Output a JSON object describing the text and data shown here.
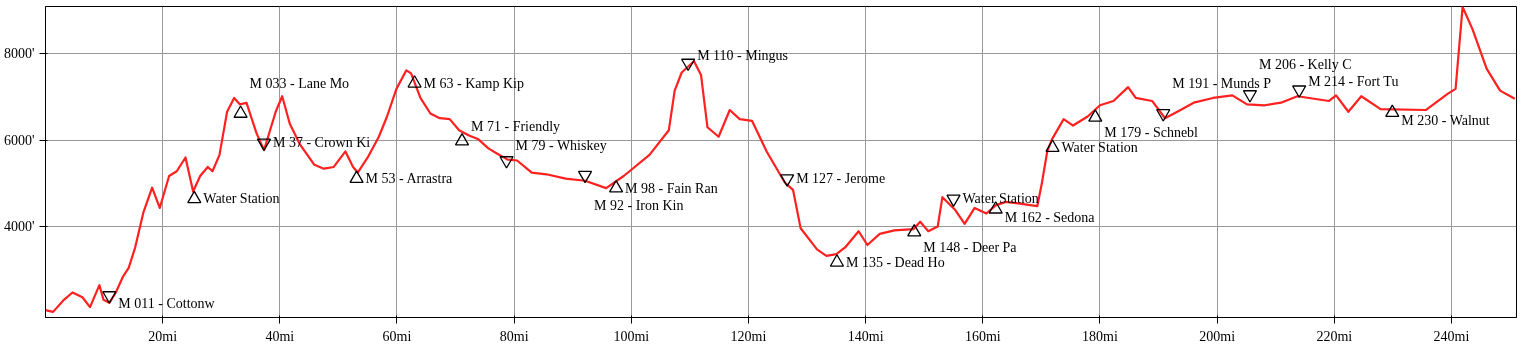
{
  "chart_data": {
    "type": "line",
    "xlim": [
      0,
      251.1
    ],
    "ylim": [
      1890,
      9100
    ],
    "xticks": [
      {
        "value": 20,
        "label": "20mi"
      },
      {
        "value": 40,
        "label": "40mi"
      },
      {
        "value": 60,
        "label": "60mi"
      },
      {
        "value": 80,
        "label": "80mi"
      },
      {
        "value": 100,
        "label": "100mi"
      },
      {
        "value": 120,
        "label": "120mi"
      },
      {
        "value": 140,
        "label": "140mi"
      },
      {
        "value": 160,
        "label": "160mi"
      },
      {
        "value": 180,
        "label": "180mi"
      },
      {
        "value": 200,
        "label": "200mi"
      },
      {
        "value": 220,
        "label": "220mi"
      },
      {
        "value": 240,
        "label": "240mi"
      }
    ],
    "yticks": [
      {
        "value": 4000,
        "label": "4000'"
      },
      {
        "value": 6000,
        "label": "6000'"
      },
      {
        "value": 8000,
        "label": "8000'"
      }
    ],
    "grid": true,
    "series": [
      {
        "color": "#ff2020",
        "x": [
          0,
          1.3,
          3.0,
          4.6,
          6.3,
          7.6,
          9.2,
          9.9,
          10.9,
          12.0,
          13.2,
          14.2,
          15.3,
          16.7,
          18.2,
          19.5,
          21.1,
          22.4,
          23.9,
          25.2,
          26.4,
          27.7,
          28.5,
          29.7,
          31.0,
          32.2,
          33.2,
          34.3,
          36.0,
          37.3,
          39.3,
          40.4,
          41.7,
          43.4,
          45.9,
          47.5,
          49.2,
          51.2,
          52.5,
          53.3,
          55.0,
          56.9,
          58.3,
          59.9,
          61.6,
          62.4,
          64.0,
          65.7,
          67.3,
          69.0,
          70.6,
          72.3,
          73.9,
          75.6,
          77.2,
          78.9,
          80.5,
          83.0,
          85.5,
          88.8,
          92.1,
          95.7,
          98.7,
          103.1,
          106.4,
          107.4,
          108.6,
          110.7,
          111.9,
          113.0,
          114.9,
          116.8,
          118.5,
          120.6,
          123.1,
          126.2,
          127.6,
          128.9,
          131.7,
          133.3,
          135.0,
          136.6,
          138.8,
          140.3,
          142.4,
          144.9,
          148.2,
          149.3,
          150.7,
          152.3,
          153.1,
          155.3,
          156.9,
          158.6,
          160.6,
          162.2,
          163.9,
          166.3,
          169.3,
          170.1,
          171.0,
          171.8,
          173.8,
          175.4,
          177.9,
          180.0,
          182.3,
          184.8,
          186.1,
          188.9,
          191.1,
          193.2,
          196.0,
          199.3,
          202.6,
          205.1,
          208.1,
          210.9,
          213.7,
          219.1,
          220.3,
          222.4,
          224.6,
          227.9,
          235.6,
          239.4,
          240.7,
          241.9,
          243.6,
          246.0,
          248.3,
          250.8
        ],
        "values": [
          2060,
          2020,
          2280,
          2470,
          2360,
          2130,
          2640,
          2300,
          2230,
          2470,
          2830,
          3040,
          3510,
          4320,
          4900,
          4430,
          5170,
          5280,
          5600,
          4810,
          5170,
          5380,
          5280,
          5660,
          6660,
          6980,
          6830,
          6870,
          6170,
          5770,
          6660,
          7020,
          6380,
          5910,
          5430,
          5340,
          5380,
          5740,
          5380,
          5250,
          5600,
          6080,
          6550,
          7190,
          7620,
          7550,
          6980,
          6620,
          6510,
          6490,
          6230,
          6110,
          6020,
          5810,
          5680,
          5550,
          5530,
          5250,
          5210,
          5110,
          5060,
          4890,
          5170,
          5660,
          6230,
          7150,
          7570,
          7830,
          7510,
          6300,
          6080,
          6700,
          6490,
          6450,
          5740,
          5020,
          4850,
          3960,
          3470,
          3320,
          3360,
          3530,
          3890,
          3570,
          3830,
          3910,
          3940,
          4110,
          3890,
          4000,
          4680,
          4380,
          4060,
          4430,
          4300,
          4490,
          4570,
          4530,
          4470,
          5020,
          5740,
          6020,
          6490,
          6340,
          6550,
          6810,
          6910,
          7230,
          6980,
          6910,
          6510,
          6660,
          6870,
          6980,
          7040,
          6830,
          6810,
          6870,
          7020,
          6910,
          7040,
          6660,
          7020,
          6720,
          6700,
          7080,
          7190,
          9090,
          8570,
          7660,
          7150,
          6960
        ]
      },
      {
        "type": "scatter",
        "marker": "triangle",
        "color": "#000000",
        "x": [
          25.4,
          33.3,
          53.1,
          63.0,
          71.1,
          97.4,
          135.1,
          148.3,
          162.2,
          171.9,
          179.2,
          229.9
        ],
        "values": [
          4640,
          6620,
          5110,
          7320,
          5980,
          4890,
          3170,
          3870,
          4400,
          5830,
          6530,
          6640
        ],
        "value_labels": [
          "Water Station",
          "M 033 - Lane Mo",
          "M 53 - Arrastra",
          "M 63 - Kamp Kip",
          "M 71 - Friendly",
          "M 98 - Fain Ran",
          "M 135 - Dead Ho",
          "M 148 - Deer Pa",
          "M 162 - Sedona",
          "Water Station",
          "M 179 - Schnebl",
          "M 230 - Walnut"
        ]
      },
      {
        "type": "scatter",
        "marker": "triangle_down",
        "color": "#000000",
        "x": [
          10.9,
          37.3,
          78.7,
          92.1,
          109.7,
          126.6,
          155.0,
          190.8,
          205.6,
          214.0
        ],
        "values": [
          2400,
          5940,
          5530,
          5190,
          7790,
          5110,
          4640,
          6620,
          7060,
          7170
        ],
        "value_labels": [
          "M 011 - Cottonw",
          "M 37 - Crown Ki",
          "M 79 - Whiskey",
          "M 92 - Iron Kin",
          "M 110 - Mingus",
          "M 127 - Jerome",
          "Water Station",
          "M 191 - Munds P",
          "M 206 - Kelly C",
          "M 214 - Fort Tu"
        ]
      }
    ]
  }
}
